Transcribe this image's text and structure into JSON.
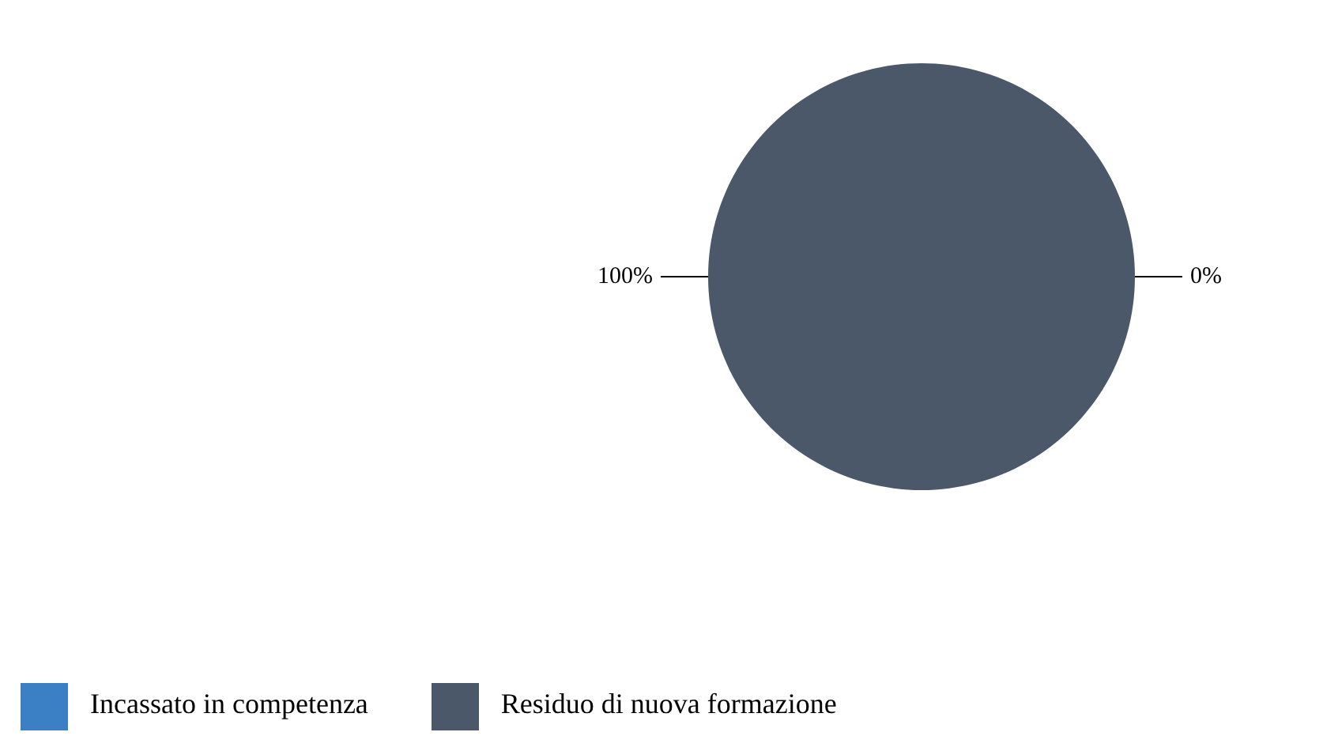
{
  "chart_data": {
    "type": "pie",
    "categories": [
      "Incassato in competenza",
      "Residuo di nuova formazione"
    ],
    "values": [
      0,
      100
    ],
    "colors": [
      "#3b7fc4",
      "#4a5869"
    ],
    "value_labels": [
      "0%",
      "100%"
    ],
    "legend": "bottom left"
  }
}
